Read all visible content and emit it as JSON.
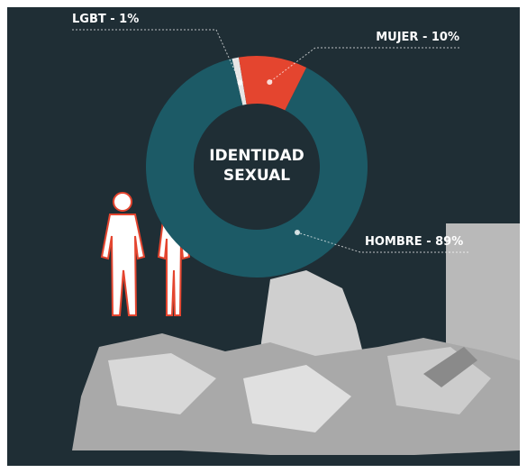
{
  "chart_data": {
    "type": "donut",
    "title": [
      "IDENTIDAD",
      "SEXUAL"
    ],
    "values": [
      1,
      10,
      89
    ],
    "value_labels": [
      "LGBT - 1%",
      "MUJER - 10%",
      "HOMBRE - 89%"
    ],
    "colors": [
      "#e6e6e6",
      "#e4452f",
      "#1c5a66"
    ]
  }
}
